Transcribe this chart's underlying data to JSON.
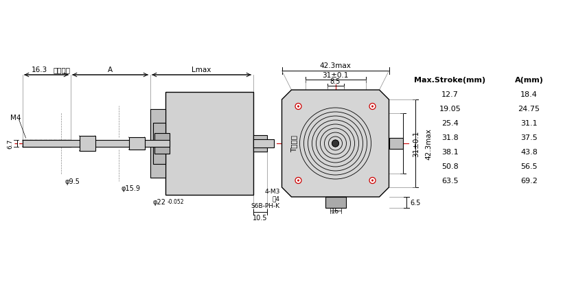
{
  "bg_color": "#ffffff",
  "line_color": "#000000",
  "red_color": "#cc0000",
  "gray_light": "#d8d8d8",
  "gray_mid": "#c0c0c0",
  "gray_dark": "#a0a0a0",
  "dim_gray": "#888888",
  "table_header": [
    "Max.Stroke(mm)",
    "A(mm)"
  ],
  "table_data": [
    [
      "12.7",
      "18.4"
    ],
    [
      "19.05",
      "24.75"
    ],
    [
      "25.4",
      "31.1"
    ],
    [
      "31.8",
      "37.5"
    ],
    [
      "38.1",
      "43.8"
    ],
    [
      "50.8",
      "56.5"
    ],
    [
      "63.5",
      "69.2"
    ]
  ],
  "labels": {
    "16_3": "16.3",
    "max_stroke": "最大行程",
    "A": "A",
    "Lmax": "Lmax",
    "M4": "M4",
    "6_7": "6.7",
    "phi9_5": "φ9.5",
    "phi15_9": "φ15.9",
    "phi22": "φ22",
    "phi22_tol": "-0.052",
    "10_5": "10.5",
    "T_screw": "T型丝杠",
    "42_3max_h": "42.3max",
    "31_01_h": "31±0.1",
    "8_5": "8.5",
    "31_01_v": "31±0.1",
    "42_3max_v": "42.3max",
    "6_5": "6.5",
    "4M3": "4-M3",
    "depth4": "深4",
    "S6B": "S6B-PH-K",
    "1_6": "1−6",
    "16_bot": "16"
  }
}
